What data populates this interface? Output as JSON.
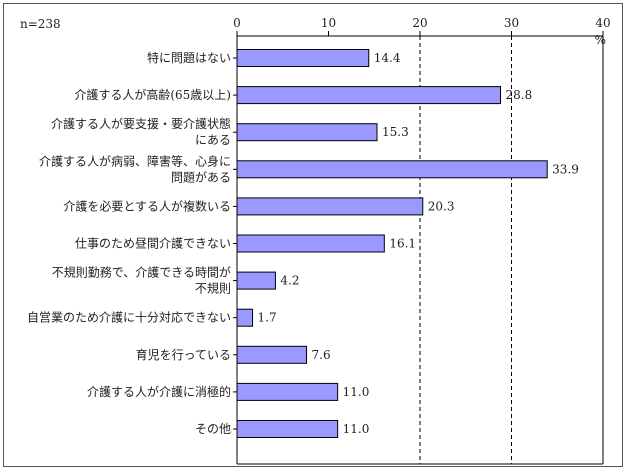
{
  "chart_data": {
    "type": "bar",
    "orientation": "horizontal",
    "sample_note": "n=238",
    "unit": "%",
    "xlim": [
      0,
      40
    ],
    "ticks": [
      0,
      10,
      20,
      30,
      40
    ],
    "categories": [
      [
        "特に問題はない"
      ],
      [
        "介護する人が高齢(65歳以上)"
      ],
      [
        "介護する人が要支援・要介護状態",
        "にある"
      ],
      [
        "介護する人が病弱、障害等、心身に",
        "問題がある"
      ],
      [
        "介護を必要とする人が複数いる"
      ],
      [
        "仕事のため昼間介護できない"
      ],
      [
        "不規則勤務で、介護できる時間が",
        "不規則"
      ],
      [
        "自営業のため介護に十分対応できない"
      ],
      [
        "育児を行っている"
      ],
      [
        "介護する人が介護に消極的"
      ],
      [
        "その他"
      ]
    ],
    "values": [
      14.4,
      28.8,
      15.3,
      33.9,
      20.3,
      16.1,
      4.2,
      1.7,
      7.6,
      11.0,
      11.0
    ],
    "value_labels": [
      "14.4",
      "28.8",
      "15.3",
      "33.9",
      "20.3",
      "16.1",
      "4.2",
      "1.7",
      "7.6",
      "11.0",
      "11.0"
    ],
    "grid": "vertical dashed lines at 20 and 30",
    "colors": {
      "bar_fill": "#9999ff",
      "bar_stroke": "#000000",
      "axis": "#000000"
    }
  }
}
